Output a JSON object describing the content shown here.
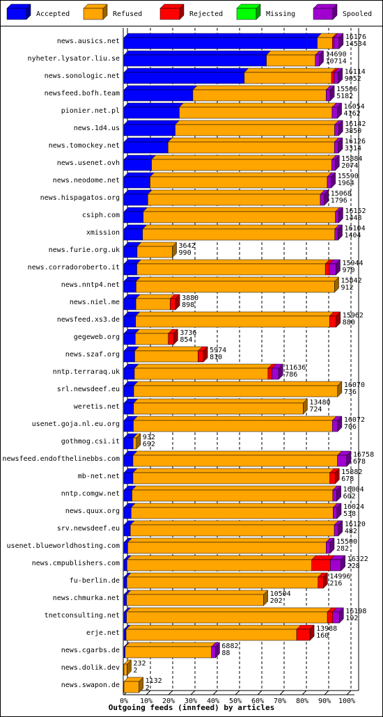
{
  "chart_data": {
    "type": "stacked-bar-3d",
    "orientation": "horizontal",
    "xlabel": "Outgoing feeds (innfeed) by articles",
    "legend": "top",
    "categories": [
      "news.ausics.net",
      "nyheter.lysator.liu.se",
      "news.sonologic.net",
      "newsfeed.bofh.team",
      "pionier.net.pl",
      "news.1d4.us",
      "news.tomockey.net",
      "news.usenet.ovh",
      "news.neodome.net",
      "news.hispagatos.org",
      "csiph.com",
      "xmission",
      "news.furie.org.uk",
      "news.corradoroberto.it",
      "news.nntp4.net",
      "news.niel.me",
      "newsfeed.xs3.de",
      "gegeweb.org",
      "news.szaf.org",
      "nntp.terraraq.uk",
      "srl.newsdeef.eu",
      "weretis.net",
      "usenet.goja.nl.eu.org",
      "gothmog.csi.it",
      "newsfeed.endofthelinebbs.com",
      "mb-net.net",
      "nntp.comgw.net",
      "news.quux.org",
      "srv.newsdeef.eu",
      "usenet.blueworldhosting.com",
      "news.cmpublishers.com",
      "fu-berlin.de",
      "news.chmurka.net",
      "tnetconsulting.net",
      "erje.net",
      "news.cgarbs.de",
      "news.dolik.dev",
      "news.swapon.de"
    ],
    "totals": [
      16176,
      14690,
      16114,
      15506,
      16054,
      16142,
      16126,
      15884,
      15590,
      15068,
      16152,
      16104,
      3642,
      15944,
      15842,
      3880,
      15962,
      3736,
      5974,
      11636,
      16070,
      13480,
      16072,
      932,
      16758,
      15882,
      16004,
      16024,
      16120,
      15500,
      16322,
      14996,
      10504,
      16198,
      13988,
      6882,
      232,
      1132
    ],
    "series": [
      {
        "name": "Accepted",
        "color": "#0000ff",
        "values": [
          14534,
          10714,
          9052,
          5182,
          4162,
          3850,
          3314,
          2074,
          1964,
          1796,
          1448,
          1404,
          990,
          970,
          912,
          898,
          880,
          854,
          810,
          786,
          736,
          724,
          706,
          692,
          678,
          678,
          602,
          538,
          482,
          282,
          228,
          216,
          202,
          192,
          160,
          88,
          2,
          2
        ]
      },
      {
        "name": "Refused",
        "color": "#ffa500",
        "values": [
          1140,
          3676,
          6562,
          10024,
          11492,
          11992,
          12512,
          13560,
          13326,
          12972,
          14454,
          14450,
          2652,
          14174,
          14930,
          2582,
          14582,
          2482,
          4764,
          10050,
          15334,
          12756,
          14966,
          240,
          15380,
          14804,
          15102,
          15186,
          15338,
          14918,
          13894,
          14380,
          10302,
          15106,
          12828,
          6494,
          230,
          1130
        ]
      },
      {
        "name": "Rejected",
        "color": "#ff0000",
        "values": [
          100,
          0,
          200,
          0,
          0,
          0,
          0,
          0,
          0,
          0,
          0,
          0,
          0,
          300,
          0,
          400,
          500,
          400,
          400,
          300,
          0,
          0,
          0,
          0,
          0,
          400,
          0,
          0,
          0,
          0,
          1400,
          400,
          0,
          400,
          1000,
          0,
          0,
          0
        ]
      },
      {
        "name": "Missing",
        "color": "#00ff00",
        "values": [
          0,
          0,
          0,
          0,
          0,
          0,
          0,
          0,
          0,
          0,
          0,
          0,
          0,
          0,
          0,
          0,
          0,
          0,
          0,
          0,
          0,
          0,
          0,
          0,
          0,
          0,
          0,
          0,
          0,
          0,
          0,
          0,
          0,
          0,
          0,
          0,
          0,
          0
        ]
      },
      {
        "name": "Spooled",
        "color": "#a000d0",
        "values": [
          402,
          300,
          300,
          300,
          400,
          300,
          300,
          250,
          300,
          300,
          250,
          250,
          0,
          500,
          0,
          0,
          0,
          0,
          0,
          500,
          0,
          0,
          400,
          0,
          700,
          0,
          300,
          300,
          300,
          300,
          800,
          0,
          0,
          500,
          0,
          300,
          0,
          0
        ]
      }
    ],
    "xlim": [
      0,
      16758
    ],
    "xticks": [
      {
        "value": 0,
        "label": "0%"
      },
      {
        "value": 1675.8,
        "label": "10%"
      },
      {
        "value": 3351.6,
        "label": "20%"
      },
      {
        "value": 5027.4,
        "label": "30%"
      },
      {
        "value": 6703.2,
        "label": "40%"
      },
      {
        "value": 8379,
        "label": "50%"
      },
      {
        "value": 10054.8,
        "label": "60%"
      },
      {
        "value": 11730.6,
        "label": "70%"
      },
      {
        "value": 13406.4,
        "label": "80%"
      },
      {
        "value": 15082.2,
        "label": "90%"
      },
      {
        "value": 16758,
        "label": "100%"
      }
    ],
    "grid": true
  }
}
